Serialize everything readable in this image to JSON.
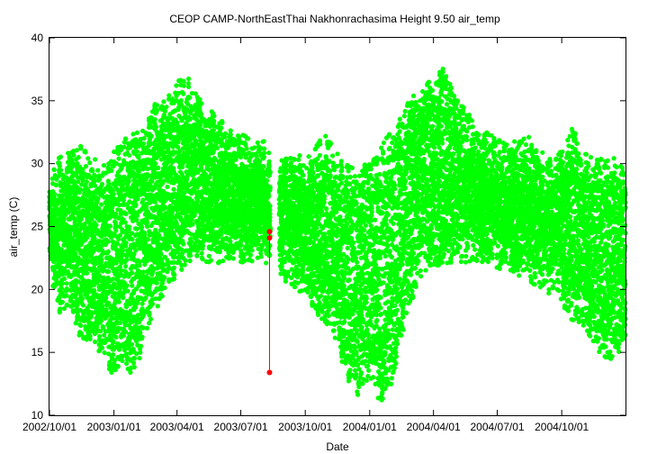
{
  "chart_data": {
    "type": "scatter",
    "title": "CEOP CAMP-NorthEastThai Nakhonrachasima Height 9.50 air_temp",
    "xlabel": "Date",
    "ylabel": "air_temp (C)",
    "xlim": [
      "2002-10-01",
      "2004-12-31"
    ],
    "ylim": [
      10,
      40
    ],
    "yticks": [
      10,
      15,
      20,
      25,
      30,
      35,
      40
    ],
    "xticks": [
      {
        "date": "2002-10-01",
        "label": "2002/10/01"
      },
      {
        "date": "2003-01-01",
        "label": "2003/01/01"
      },
      {
        "date": "2003-04-01",
        "label": "2003/04/01"
      },
      {
        "date": "2003-07-01",
        "label": "2003/07/01"
      },
      {
        "date": "2003-10-01",
        "label": "2003/10/01"
      },
      {
        "date": "2004-01-01",
        "label": "2004/01/01"
      },
      {
        "date": "2004-04-01",
        "label": "2004/04/01"
      },
      {
        "date": "2004-07-01",
        "label": "2004/07/01"
      },
      {
        "date": "2004-10-01",
        "label": "2004/10/01"
      }
    ],
    "grid": false,
    "legend": "none",
    "colors": {
      "good": "#00ff00",
      "flagged": "#ff0000"
    },
    "series": [
      {
        "color": "#00ff00",
        "daily_min_max": [
          [
            "2002-10-01",
            22.5,
            30.0
          ],
          [
            "2002-10-15",
            18.5,
            30.5
          ],
          [
            "2002-11-01",
            19.5,
            31.0
          ],
          [
            "2002-11-15",
            16.5,
            31.5
          ],
          [
            "2002-12-01",
            17.0,
            30.5
          ],
          [
            "2002-12-15",
            15.5,
            30.0
          ],
          [
            "2003-01-01",
            13.8,
            31.0
          ],
          [
            "2003-01-15",
            15.0,
            32.0
          ],
          [
            "2003-02-01",
            13.5,
            32.5
          ],
          [
            "2003-02-15",
            17.5,
            33.0
          ],
          [
            "2003-03-01",
            19.0,
            35.0
          ],
          [
            "2003-03-15",
            20.5,
            35.0
          ],
          [
            "2003-04-01",
            22.0,
            36.5
          ],
          [
            "2003-04-15",
            23.0,
            37.3
          ],
          [
            "2003-05-01",
            23.5,
            35.5
          ],
          [
            "2003-05-15",
            23.0,
            34.5
          ],
          [
            "2003-06-01",
            23.0,
            33.5
          ],
          [
            "2003-06-15",
            23.0,
            33.0
          ],
          [
            "2003-07-01",
            23.0,
            32.5
          ],
          [
            "2003-07-15",
            23.0,
            32.0
          ],
          [
            "2003-08-01",
            23.0,
            32.5
          ],
          [
            "2003-08-15",
            22.5,
            30.0
          ],
          [
            "2003-09-01",
            21.5,
            30.5
          ],
          [
            "2003-09-15",
            21.0,
            30.5
          ],
          [
            "2003-10-01",
            20.5,
            31.0
          ],
          [
            "2003-10-15",
            19.0,
            31.5
          ],
          [
            "2003-11-01",
            18.0,
            32.5
          ],
          [
            "2003-11-15",
            16.5,
            31.0
          ],
          [
            "2003-12-01",
            13.5,
            30.0
          ],
          [
            "2003-12-15",
            12.5,
            29.5
          ],
          [
            "2004-01-01",
            14.0,
            30.5
          ],
          [
            "2004-01-15",
            11.8,
            31.0
          ],
          [
            "2004-02-01",
            13.3,
            33.0
          ],
          [
            "2004-02-15",
            17.0,
            34.0
          ],
          [
            "2004-03-01",
            20.0,
            35.5
          ],
          [
            "2004-03-15",
            22.0,
            36.5
          ],
          [
            "2004-04-01",
            22.5,
            36.5
          ],
          [
            "2004-04-15",
            23.0,
            37.7
          ],
          [
            "2004-05-01",
            23.0,
            35.5
          ],
          [
            "2004-05-15",
            23.0,
            34.5
          ],
          [
            "2004-06-01",
            23.0,
            33.0
          ],
          [
            "2004-06-15",
            23.0,
            32.5
          ],
          [
            "2004-07-01",
            22.5,
            32.0
          ],
          [
            "2004-07-15",
            22.5,
            31.5
          ],
          [
            "2004-08-01",
            22.0,
            32.0
          ],
          [
            "2004-08-15",
            21.5,
            32.3
          ],
          [
            "2004-09-01",
            21.0,
            31.0
          ],
          [
            "2004-09-15",
            20.5,
            30.5
          ],
          [
            "2004-10-01",
            19.5,
            31.0
          ],
          [
            "2004-10-15",
            18.5,
            33.2
          ],
          [
            "2004-11-01",
            17.5,
            31.0
          ],
          [
            "2004-11-15",
            16.5,
            30.5
          ],
          [
            "2004-12-01",
            15.0,
            30.5
          ],
          [
            "2004-12-15",
            15.5,
            30.5
          ],
          [
            "2004-12-31",
            16.0,
            29.5
          ]
        ]
      },
      {
        "color": "#ff0000",
        "points": [
          {
            "x": "2003-08-11",
            "y": 24.6
          },
          {
            "x": "2003-08-11",
            "y": 24.1
          },
          {
            "x": "2003-08-11",
            "y": 13.4
          }
        ]
      }
    ]
  }
}
